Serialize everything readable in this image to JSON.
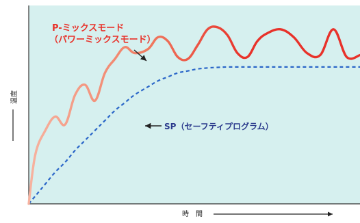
{
  "chart_data": {
    "type": "line",
    "title": "",
    "xlabel": "時　間",
    "ylabel": "温度",
    "grid": false,
    "legend": "none",
    "colors": {
      "background": "#d6f0ef",
      "pmix": "#e8322a",
      "pmix_light": "#f4a08c",
      "sp": "#2a66c8",
      "axis": "#333333"
    },
    "x": [
      0,
      2,
      5,
      8,
      11,
      14,
      17,
      20,
      23,
      26,
      29,
      32,
      36,
      39,
      42,
      45,
      48,
      51,
      54,
      57,
      60,
      63,
      66,
      69,
      72,
      76,
      80,
      84,
      88,
      92,
      96,
      100
    ],
    "series": [
      {
        "name": "P-ミックスモード（パワーミックスモード）",
        "values": [
          0.0,
          25.0,
          37.0,
          44.0,
          40.0,
          55.0,
          60.0,
          52.0,
          66.0,
          73.0,
          79.0,
          76.0,
          78.0,
          84.0,
          82.0,
          74.0,
          73.0,
          80.0,
          88.0,
          89.0,
          85.0,
          76.0,
          74.0,
          82.0,
          86.0,
          88.0,
          84.0,
          76.0,
          75.0,
          88.0,
          74.0,
          75.0
        ],
        "style": "solid"
      },
      {
        "name": "SP（セーフティプログラム）",
        "values": [
          0.0,
          4.0,
          10.0,
          16.0,
          21.0,
          27.0,
          32.0,
          37.0,
          42.0,
          47.0,
          51.0,
          55.0,
          59.0,
          62.0,
          64.0,
          66.0,
          67.0,
          68.0,
          68.5,
          68.8,
          69.0,
          69.0,
          69.0,
          69.0,
          69.0,
          69.0,
          69.0,
          69.0,
          69.0,
          69.0,
          69.0,
          69.0
        ],
        "style": "dashed"
      }
    ],
    "xlim": [
      0,
      100
    ],
    "ylim": [
      0,
      100
    ],
    "annotations": [
      {
        "text_line1": "P-ミックスモード",
        "text_line2": "（パワーミックスモード）",
        "target_series": "P-ミックスモード（パワーミックスモード）"
      },
      {
        "text": "SP（セーフティプログラム）",
        "target_series": "SP（セーフティプログラム）"
      }
    ]
  }
}
